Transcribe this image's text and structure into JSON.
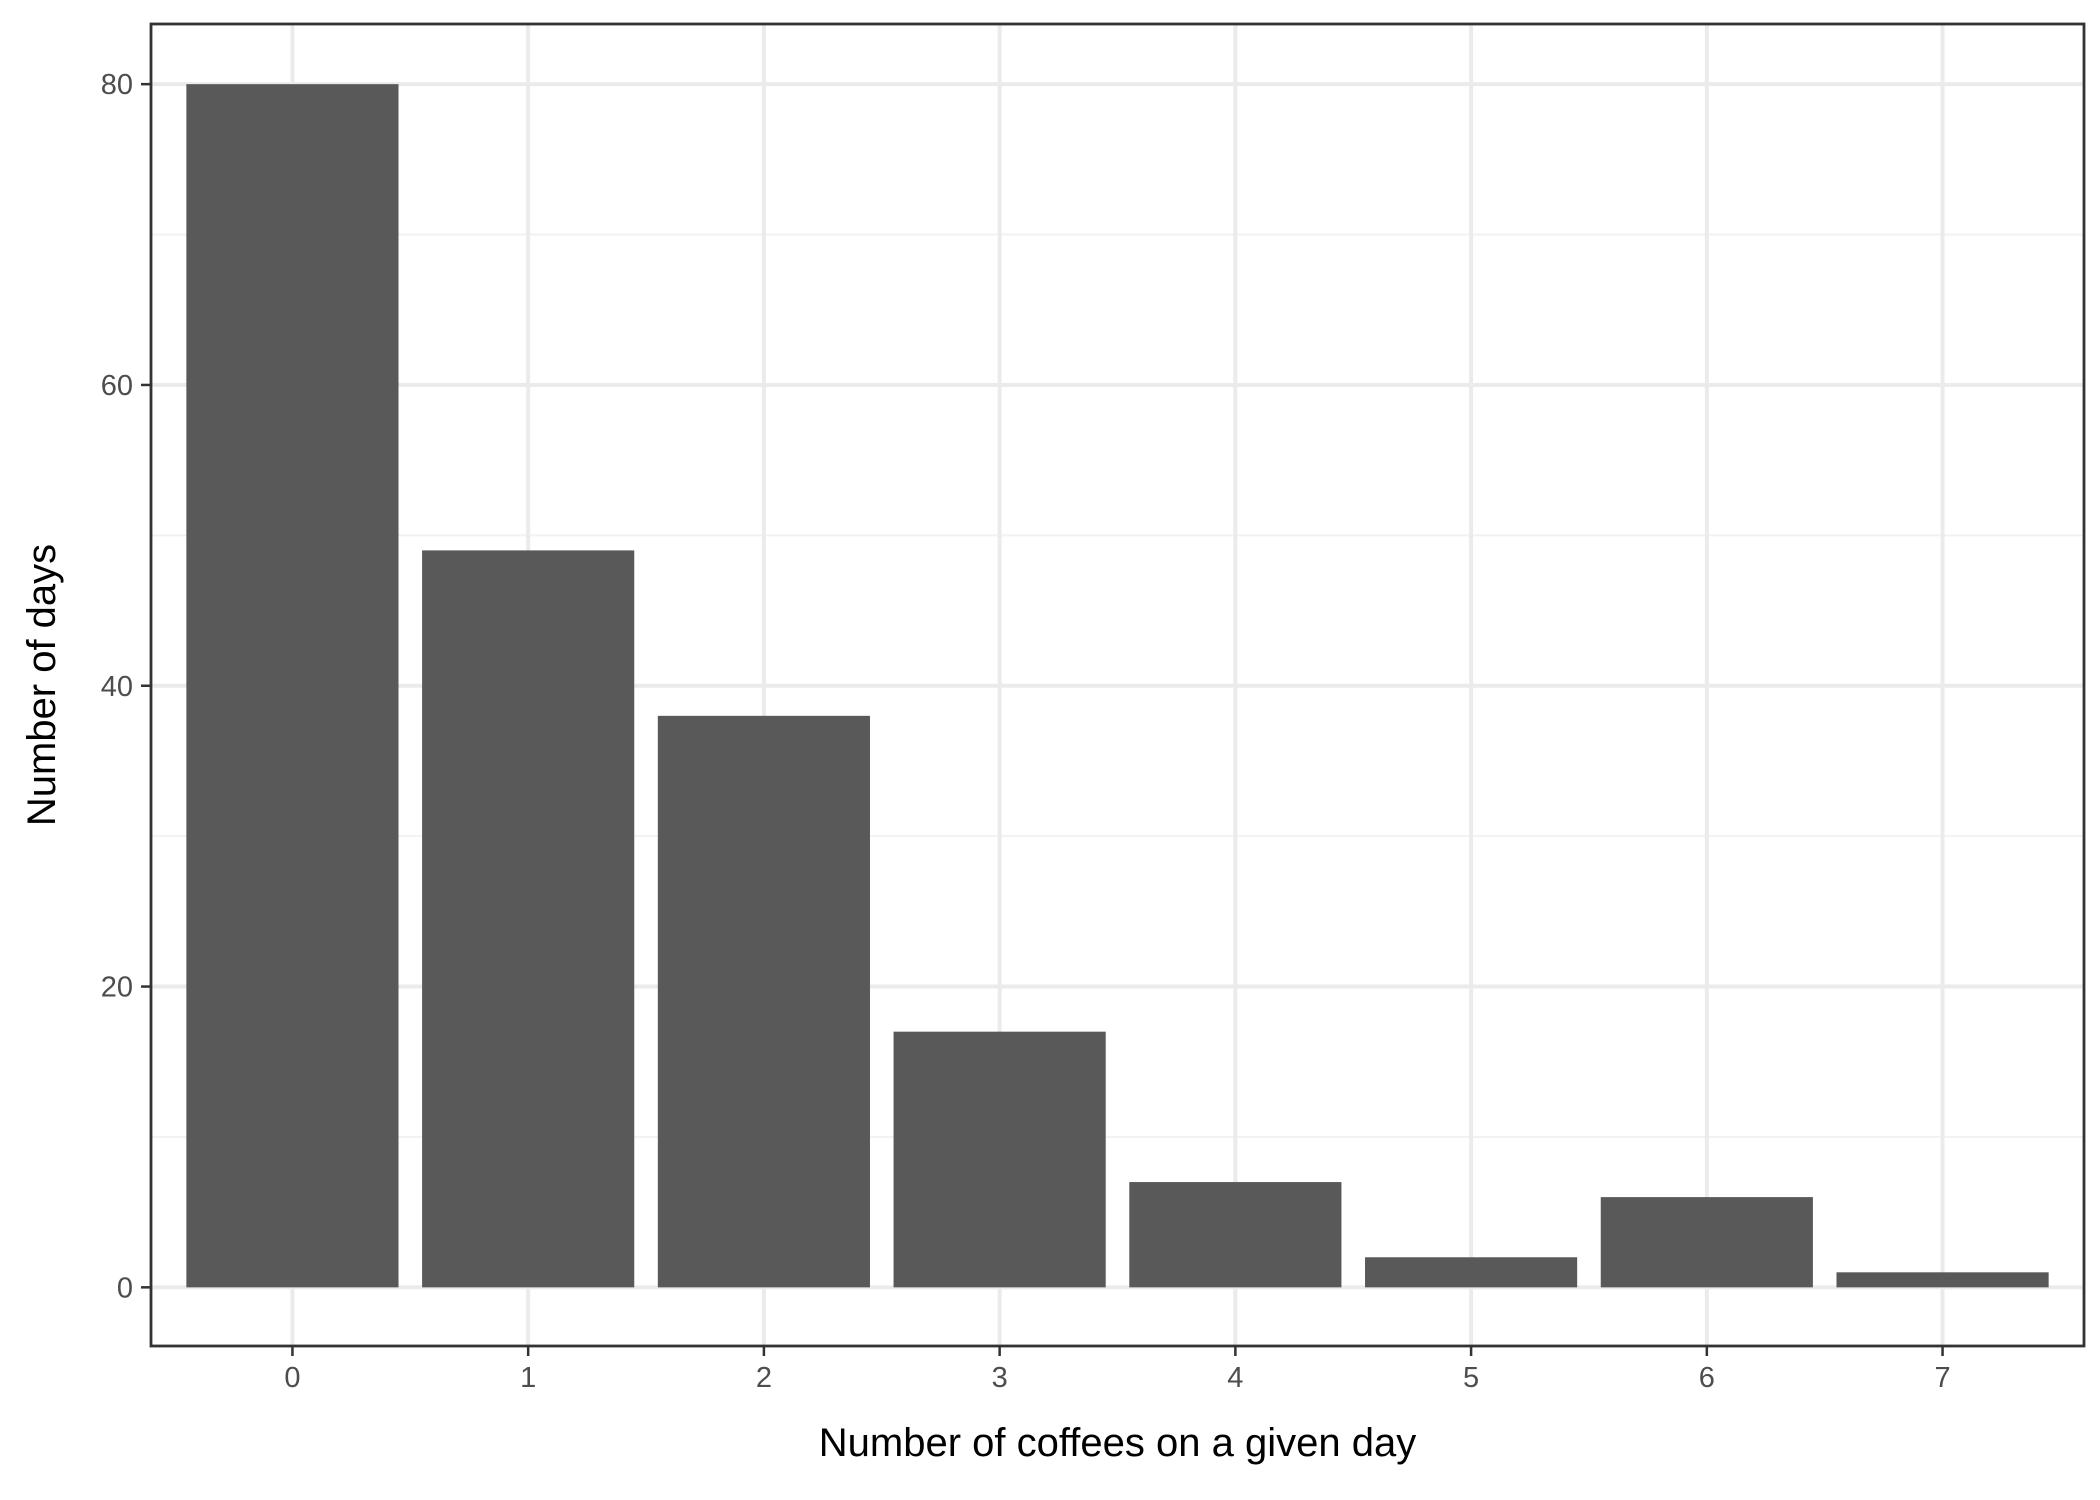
{
  "chart_data": {
    "type": "bar",
    "title": "",
    "xlabel": "Number of coffees on a given day",
    "ylabel": "Number of days",
    "categories": [
      "0",
      "1",
      "2",
      "3",
      "4",
      "5",
      "6",
      "7"
    ],
    "values": [
      80,
      49,
      38,
      17,
      7,
      2,
      6,
      1
    ],
    "ylim": [
      -3.9,
      84
    ],
    "xlim": [
      -0.6,
      7.6
    ],
    "y_ticks": [
      0,
      20,
      40,
      60,
      80
    ],
    "y_tick_labels": [
      "0",
      "20",
      "40",
      "60",
      "80"
    ],
    "grid": true,
    "legend": "none",
    "colors": {
      "bar": "#595959",
      "panel_background": "#ffffff",
      "grid_major": "#ebebeb",
      "grid_minor": "#f2f2f2",
      "border": "#333333",
      "tick_text": "#4d4d4d",
      "title_text": "#000000"
    }
  }
}
